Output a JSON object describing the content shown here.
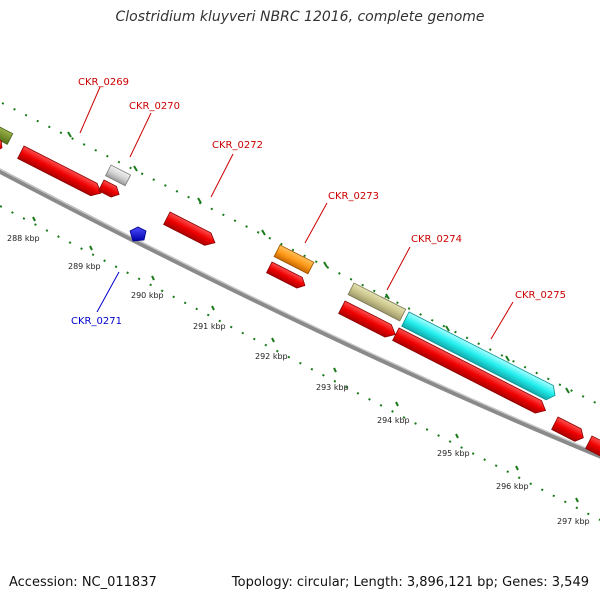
{
  "title": "Clostridium kluyveri NBRC 12016, complete genome",
  "footer": {
    "accession": "Accession: NC_011837",
    "topology": "Topology: circular; Length: 3,896,121 bp; Genes: 3,549"
  },
  "colors": {
    "forward_gene_label": "#cc0000",
    "reverse_gene_label": "#0000cc",
    "tick_marks": "#1a7a1a",
    "backbone": "#8a8a8a"
  },
  "scale_ticks": [
    "288 kbp",
    "289 kbp",
    "290 kbp",
    "291 kbp",
    "292 kbp",
    "293 kbp",
    "294 kbp",
    "295 kbp",
    "296 kbp",
    "297 kbp"
  ],
  "gene_labels": [
    {
      "id": "CKR_0269",
      "text": "CKR_0269",
      "strand": "forward"
    },
    {
      "id": "CKR_0270",
      "text": "CKR_0270",
      "strand": "forward"
    },
    {
      "id": "CKR_0271",
      "text": "CKR_0271",
      "strand": "reverse"
    },
    {
      "id": "CKR_0272",
      "text": "CKR_0272",
      "strand": "forward"
    },
    {
      "id": "CKR_0273",
      "text": "CKR_0273",
      "strand": "forward"
    },
    {
      "id": "CKR_0274",
      "text": "CKR_0274",
      "strand": "forward"
    },
    {
      "id": "CKR_0275",
      "text": "CKR_0275",
      "strand": "forward"
    }
  ]
}
